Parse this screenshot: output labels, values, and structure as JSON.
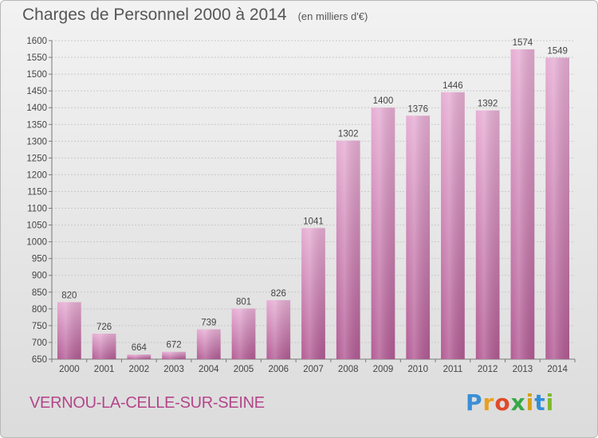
{
  "header": {
    "title": "Charges de Personnel 2000 à 2014",
    "unit": "(en milliers d'€)"
  },
  "footer": {
    "commune": "VERNOU-LA-CELLE-SUR-SEINE",
    "logo_letters": [
      "P",
      "r",
      "o",
      "x",
      "i",
      "t",
      "i"
    ],
    "logo_colors": [
      "#3b8fd6",
      "#e8a020",
      "#e04a2a",
      "#39a845",
      "#d6a11a",
      "#2f8fd8",
      "#7cba2f"
    ]
  },
  "colors": {
    "bar_light": "#e7aed4",
    "bar_dark": "#b35c95",
    "grid": "#c8c8c8"
  },
  "chart_data": {
    "type": "bar",
    "title": "Charges de Personnel 2000 à 2014",
    "categories": [
      "2000",
      "2001",
      "2002",
      "2003",
      "2004",
      "2005",
      "2006",
      "2007",
      "2008",
      "2009",
      "2010",
      "2011",
      "2012",
      "2013",
      "2014"
    ],
    "values": [
      820,
      726,
      664,
      672,
      739,
      801,
      826,
      1041,
      1302,
      1400,
      1376,
      1446,
      1392,
      1574,
      1549
    ],
    "ylim": [
      650,
      1600
    ],
    "ystep": 50,
    "grid": true
  }
}
